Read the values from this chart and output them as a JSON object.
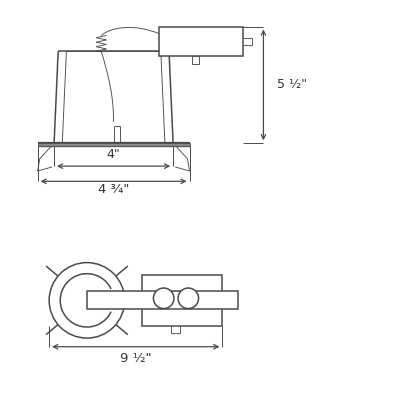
{
  "bg_color": "#ffffff",
  "line_color": "#4a4a4a",
  "lw": 1.1,
  "lw_thin": 0.65,
  "dim_color": "#4a4a4a",
  "text_color": "#333333",
  "fig_size": [
    4.16,
    4.16
  ],
  "dpi": 100,
  "dim_4_label": "4\"",
  "dim_475_label": "4 ¾\"",
  "dim_55_label": "5 ½\"",
  "dim_95_label": "9 ½\""
}
